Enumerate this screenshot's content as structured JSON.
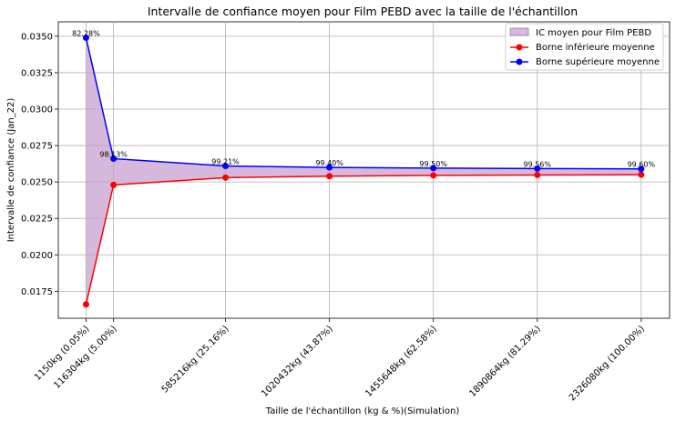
{
  "chart_data": {
    "type": "line",
    "title": "Intervalle de confiance moyen pour Film PEBD avec la taille de l'échantillon",
    "xlabel": "Taille de l'échantillon (kg & %)(Simulation)",
    "ylabel": "Intervalle de confiance (Jan_22)",
    "x": [
      1150,
      116304,
      585216,
      1020432,
      1455648,
      1890864,
      2326080
    ],
    "x_tick_labels": [
      "1150kg (0.05%)",
      "116304kg (5.00%)",
      "585216kg (25.16%)",
      "1020432kg (43.87%)",
      "1455648kg (62.58%)",
      "1890864kg (81.29%)",
      "2326080kg (100.00%)"
    ],
    "annotations": [
      "82.28%",
      "98.13%",
      "99.21%",
      "99.40%",
      "99.50%",
      "99.56%",
      "99.60%"
    ],
    "series": [
      {
        "name": "Borne inférieure moyenne",
        "color": "#ff0000",
        "values": [
          0.0166,
          0.0248,
          0.0253,
          0.0254,
          0.02545,
          0.02548,
          0.0255
        ]
      },
      {
        "name": "Borne supérieure moyenne",
        "color": "#0000ff",
        "values": [
          0.0349,
          0.0266,
          0.0261,
          0.026,
          0.02595,
          0.02592,
          0.0259
        ]
      }
    ],
    "fill": {
      "name": "IC moyen pour Film PEBD",
      "color": "#c8a0d2"
    },
    "y_ticks": [
      "0.0175",
      "0.0200",
      "0.0225",
      "0.0250",
      "0.0275",
      "0.0300",
      "0.0325",
      "0.0350"
    ],
    "y_tick_values": [
      0.0175,
      0.02,
      0.0225,
      0.025,
      0.0275,
      0.03,
      0.0325,
      0.035
    ],
    "ylim": [
      0.01565,
      0.03599
    ],
    "xlim": [
      -115000,
      2445000
    ],
    "grid": true,
    "legend_position": "top-right"
  }
}
